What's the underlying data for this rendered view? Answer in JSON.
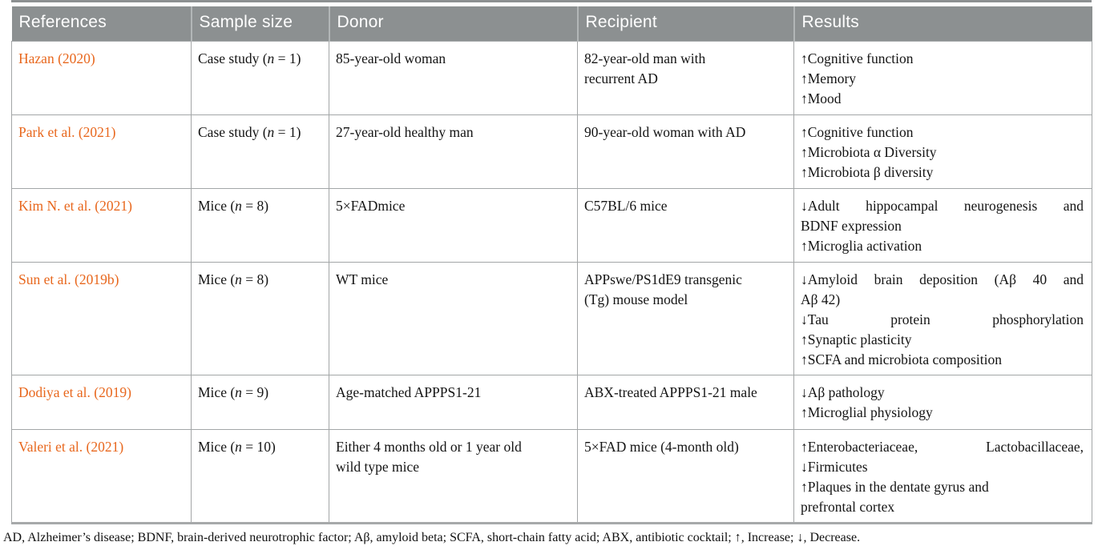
{
  "colors": {
    "header_bg": "#8c9091",
    "reference_orange": "#e8671d",
    "border_gray": "#a3a6a7"
  },
  "table": {
    "columns": [
      "References",
      "Sample size",
      "Donor",
      "Recipient",
      "Results"
    ],
    "rows": [
      {
        "reference": "Hazan (2020)",
        "sample_size": {
          "before": "Case study (",
          "italic": "n",
          "after": " = 1)"
        },
        "donor": [
          "85-year-old woman"
        ],
        "recipient": [
          "82-year-old man with",
          "recurrent AD"
        ],
        "results": [
          {
            "text": "↑Cognitive function"
          },
          {
            "text": "↑Memory"
          },
          {
            "text": "↑Mood"
          }
        ]
      },
      {
        "reference": "Park et al. (2021)",
        "sample_size": {
          "before": "Case study (",
          "italic": "n",
          "after": " = 1)"
        },
        "donor": [
          "27-year-old healthy man"
        ],
        "recipient": [
          "90-year-old woman with AD"
        ],
        "results": [
          {
            "text": "↑Cognitive function"
          },
          {
            "text": "↑Microbiota α Diversity"
          },
          {
            "text": "↑Microbiota β diversity"
          }
        ]
      },
      {
        "reference": "Kim N. et al. (2021)",
        "sample_size": {
          "before": "Mice (",
          "italic": "n",
          "after": " = 8)"
        },
        "donor": [
          "5×FADmice"
        ],
        "recipient": [
          "C57BL/6 mice"
        ],
        "results": [
          {
            "text": "↓Adult hippocampal neurogenesis and",
            "stretch": true
          },
          {
            "text": "BDNF expression"
          },
          {
            "text": "↑Microglia activation"
          }
        ]
      },
      {
        "reference": "Sun et al. (2019b)",
        "sample_size": {
          "before": "Mice (",
          "italic": "n",
          "after": " = 8)"
        },
        "donor": [
          "WT mice"
        ],
        "recipient": [
          "APPswe/PS1dE9 transgenic",
          "(Tg) mouse model"
        ],
        "results": [
          {
            "text": "↓Amyloid brain deposition (Aβ 40 and",
            "stretch": true
          },
          {
            "text": "Aβ 42)"
          },
          {
            "text": "↓Tau protein phosphorylation",
            "stretch": true
          },
          {
            "text": "↑Synaptic plasticity"
          },
          {
            "text": "↑SCFA and microbiota composition"
          }
        ]
      },
      {
        "reference": "Dodiya et al. (2019)",
        "sample_size": {
          "before": "Mice (",
          "italic": "n",
          "after": " = 9)"
        },
        "donor": [
          "Age-matched APPPS1-21"
        ],
        "recipient": [
          "ABX-treated APPPS1-21 male"
        ],
        "results": [
          {
            "text": "↓Aβ pathology"
          },
          {
            "text": "↑Microglial physiology"
          }
        ]
      },
      {
        "reference": "Valeri et al. (2021)",
        "sample_size": {
          "before": "Mice (",
          "italic": "n",
          "after": " = 10)"
        },
        "donor": [
          "Either 4 months old or 1 year old",
          "wild type mice"
        ],
        "recipient": [
          "5×FAD mice (4-month old)"
        ],
        "results": [
          {
            "text": "↑Enterobacteriaceae, Lactobacillaceae,",
            "stretch": true
          },
          {
            "text": "↓Firmicutes"
          },
          {
            "text": "↑Plaques in the dentate gyrus and"
          },
          {
            "text": "prefrontal cortex"
          }
        ]
      }
    ]
  },
  "footnote": "AD, Alzheimer’s disease; BDNF, brain-derived neurotrophic factor; Aβ, amyloid beta; SCFA, short-chain fatty acid; ABX, antibiotic cocktail; ↑, Increase; ↓, Decrease."
}
